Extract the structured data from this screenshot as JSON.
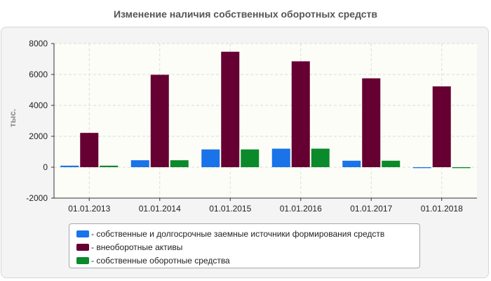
{
  "chart_data": {
    "type": "bar",
    "title": "Изменение наличия собственных оборотных средств",
    "ylabel": "тыс.",
    "xlabel": "",
    "categories": [
      "01.01.2013",
      "01.01.2014",
      "01.01.2015",
      "01.01.2016",
      "01.01.2017",
      "01.01.2018"
    ],
    "ylim": [
      -2000,
      8000
    ],
    "yticks": [
      8000,
      6000,
      4000,
      2000,
      0,
      -2000
    ],
    "grid": true,
    "legend_placement": "bottom-center",
    "series": [
      {
        "name": "- собственные и долгосрочные заемные источники формирования средств",
        "color": "#1a73e8",
        "values": [
          100,
          450,
          1150,
          1200,
          420,
          -60
        ]
      },
      {
        "name": "- внеоборотные активы",
        "color": "#660033",
        "values": [
          2220,
          5980,
          7470,
          6850,
          5750,
          5230
        ]
      },
      {
        "name": "- собственные оборотные средства",
        "color": "#0b8a2c",
        "values": [
          100,
          450,
          1150,
          1200,
          420,
          -60
        ]
      }
    ]
  }
}
